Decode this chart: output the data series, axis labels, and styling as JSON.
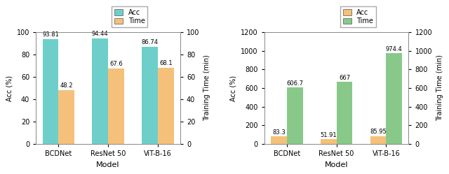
{
  "models": [
    "BCDNet",
    "ResNet 50",
    "ViT-B-16"
  ],
  "left": {
    "acc": [
      93.81,
      94.44,
      86.74
    ],
    "time": [
      48.2,
      67.6,
      68.1
    ],
    "acc_color": "#6ECFCA",
    "time_color": "#F5C07A",
    "ylabel_left": "Acc (%)",
    "ylabel_right": "Training Time (min)",
    "ylim_left": [
      0,
      100
    ],
    "ylim_right": [
      0,
      100
    ],
    "legend_labels": [
      "Acc",
      "Time"
    ],
    "acc_label_offsets": [
      1.0,
      1.0,
      1.0
    ],
    "time_label_offsets": [
      1.0,
      1.0,
      1.0
    ]
  },
  "right": {
    "acc": [
      83.3,
      51.91,
      85.95
    ],
    "time": [
      606.7,
      667,
      974.4
    ],
    "acc_color": "#F5C07A",
    "time_color": "#88C98A",
    "ylabel_left": "Acc (%)",
    "ylabel_right": "Training Time (min)",
    "ylim_left": [
      0,
      1200
    ],
    "ylim_right": [
      0,
      1200
    ],
    "legend_labels": [
      "Acc",
      "Time"
    ],
    "acc_label_offsets": [
      10,
      10,
      10
    ],
    "time_label_offsets": [
      10,
      10,
      10
    ]
  },
  "xlabel": "Model",
  "bar_width": 0.32,
  "figure_bg": "#FFFFFF",
  "axes_bg": "#FFFFFF"
}
